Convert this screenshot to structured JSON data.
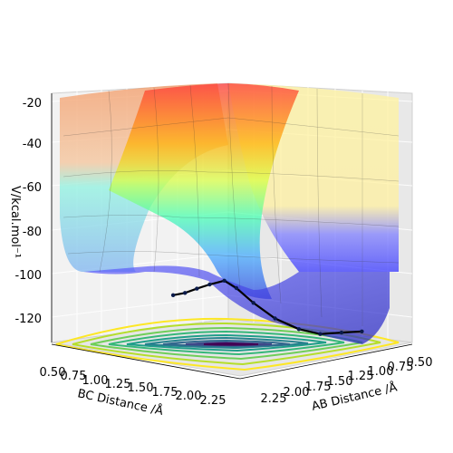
{
  "chart_data": {
    "type": "surface3d",
    "title": "",
    "xlabel": "BC Distance /Å",
    "ylabel": "AB Distance /Å",
    "zlabel": "V/kcal.mol$^{-1}$",
    "zlabel_display": "V/kcal.mol⁻¹",
    "x_ticks": [
      "0.50",
      "0.75",
      "1.00",
      "1.25",
      "1.50",
      "1.75",
      "2.00",
      "2.25"
    ],
    "y_ticks": [
      "0.50",
      "0.75",
      "1.00",
      "1.25",
      "1.50",
      "1.75",
      "2.00",
      "2.25"
    ],
    "z_ticks": [
      "-20",
      "-40",
      "-60",
      "-80",
      "-100",
      "-120"
    ],
    "z_range": [
      -135,
      -18
    ],
    "colormap_surface": "jet",
    "colormap_contour": "viridis",
    "trajectory_color": "#000000",
    "trajectory_points": [
      {
        "BC": 0.78,
        "AB": 2.3,
        "V": -102
      },
      {
        "BC": 0.8,
        "AB": 2.1,
        "V": -102
      },
      {
        "BC": 0.82,
        "AB": 1.9,
        "V": -101
      },
      {
        "BC": 0.85,
        "AB": 1.7,
        "V": -100
      },
      {
        "BC": 0.9,
        "AB": 1.5,
        "V": -99
      },
      {
        "BC": 0.95,
        "AB": 1.35,
        "V": -103
      },
      {
        "BC": 1.05,
        "AB": 1.2,
        "V": -110
      },
      {
        "BC": 1.2,
        "AB": 1.05,
        "V": -117
      },
      {
        "BC": 1.4,
        "AB": 0.95,
        "V": -121
      },
      {
        "BC": 1.6,
        "AB": 0.9,
        "V": -122
      },
      {
        "BC": 1.8,
        "AB": 0.85,
        "V": -120
      },
      {
        "BC": 2.0,
        "AB": 0.82,
        "V": -118
      }
    ]
  }
}
